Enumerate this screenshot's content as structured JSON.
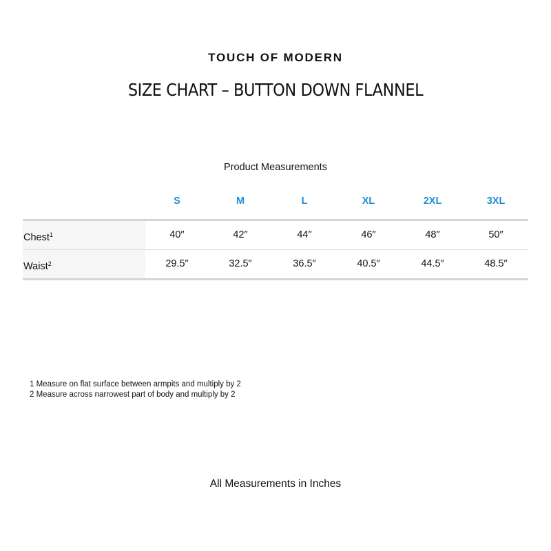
{
  "brand": "TOUCH OF MODERN",
  "title": "SIZE CHART – BUTTON DOWN FLANNEL",
  "subtitle": "Product Measurements",
  "accent_color": "#1e8fd6",
  "table": {
    "sizes": [
      "S",
      "M",
      "L",
      "XL",
      "2XL",
      "3XL"
    ],
    "rows": [
      {
        "label": "Chest",
        "sup": "1",
        "values": [
          "40″",
          "42″",
          "44″",
          "46″",
          "48″",
          "50″"
        ]
      },
      {
        "label": "Waist",
        "sup": "2",
        "values": [
          "29.5″",
          "32.5″",
          "36.5″",
          "40.5″",
          "44.5″",
          "48.5″"
        ]
      }
    ]
  },
  "notes": [
    "1 Measure on flat surface between armpits and multiply by 2",
    "2 Measure across narrowest part of body and multiply by 2"
  ],
  "footer": "All Measurements in Inches"
}
